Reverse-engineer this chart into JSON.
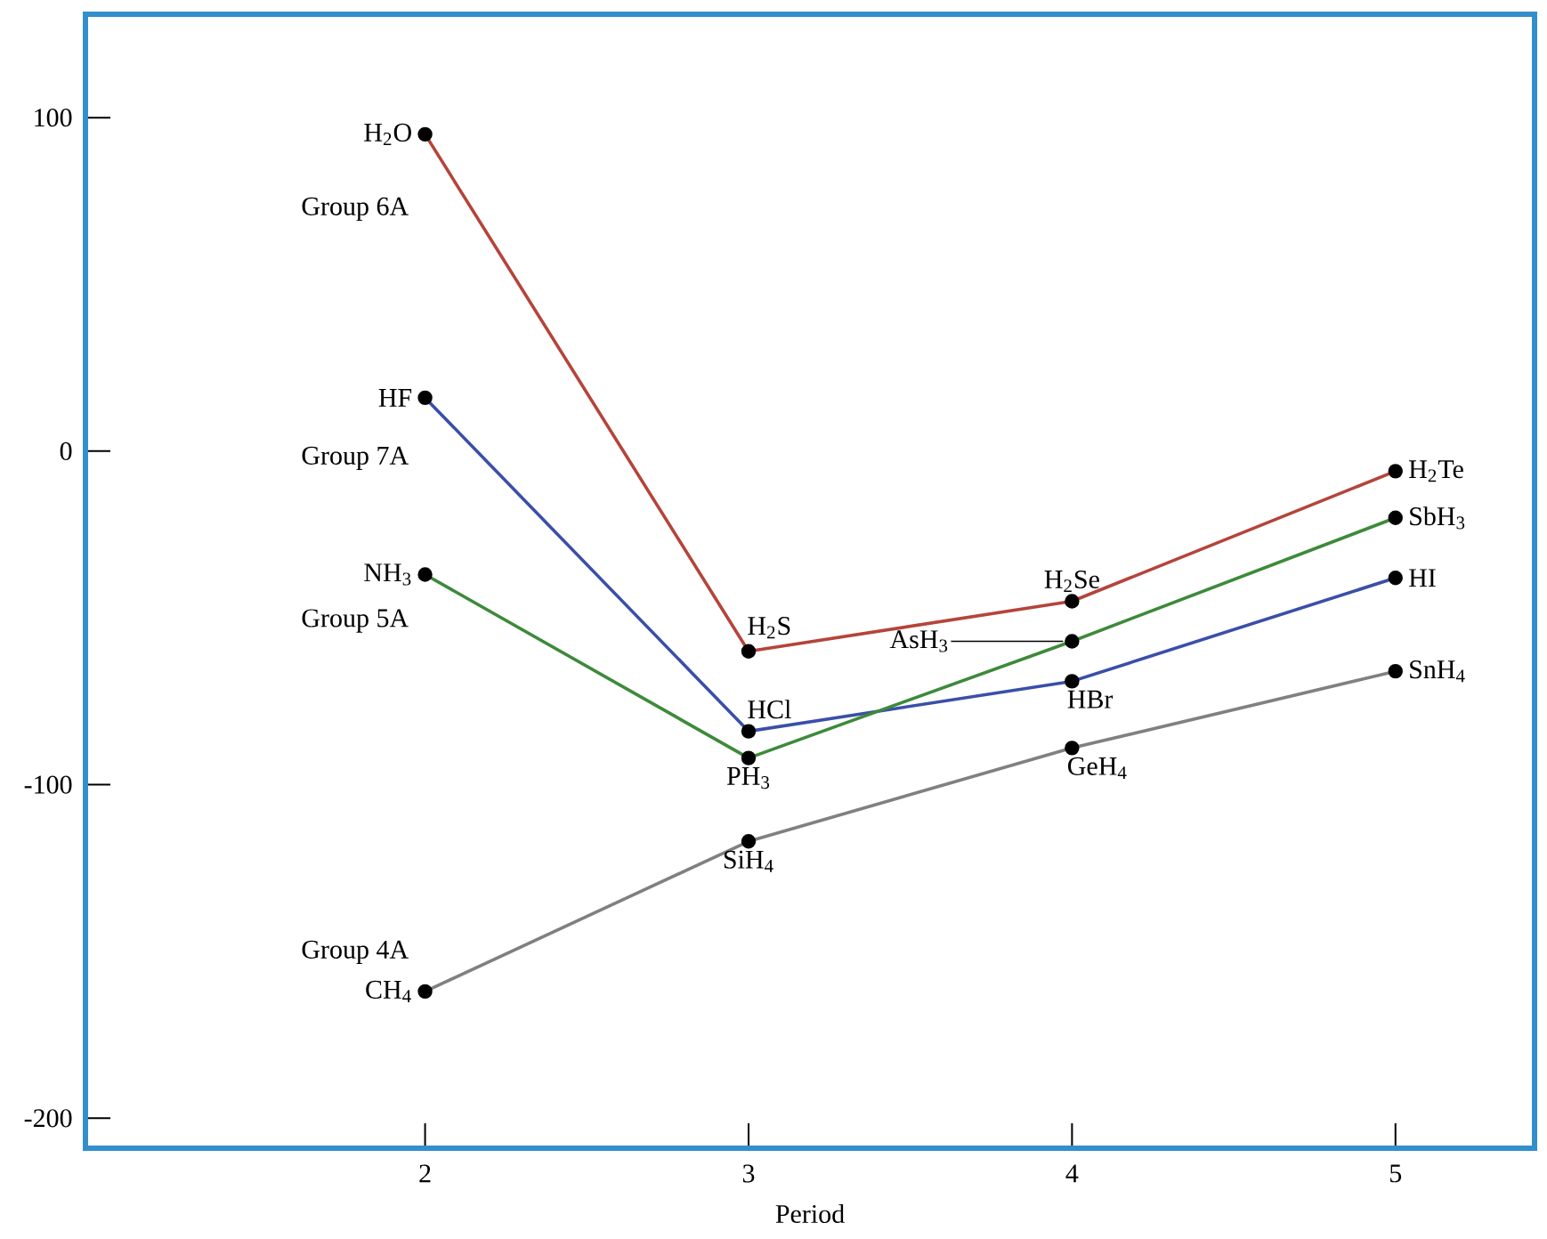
{
  "chart_data": {
    "type": "line",
    "xlabel": "Period",
    "x": [
      2,
      3,
      4,
      5
    ],
    "xlim": [
      0.95,
      5.43
    ],
    "xticks": [
      2,
      3,
      4,
      5
    ],
    "ylim": [
      -209,
      131
    ],
    "yticks": [
      100,
      0,
      -100,
      -200
    ],
    "grid": false,
    "legend": false,
    "marker": "circle",
    "line_style": "solid",
    "series": [
      {
        "name": "Group 6A",
        "color": "#b5443a",
        "values": [
          95,
          -60,
          -45,
          -6
        ]
      },
      {
        "name": "Group 7A",
        "color": "#3a4fa8",
        "values": [
          16,
          -84,
          -69,
          -38
        ]
      },
      {
        "name": "Group 5A",
        "color": "#3d8a3a",
        "values": [
          -37,
          -92,
          -57,
          -20
        ]
      },
      {
        "name": "Group 4A",
        "color": "#808080",
        "values": [
          -162,
          -117,
          -89,
          -66
        ]
      }
    ],
    "annotations": [
      {
        "text": "H$_{2}$O",
        "x": 2,
        "y": 95
      },
      {
        "text": "HF",
        "x": 2,
        "y": 16
      },
      {
        "text": "NH$_{3}$",
        "x": 2,
        "y": -37
      },
      {
        "text": "CH$_{4}$",
        "x": 2,
        "y": -162
      },
      {
        "text": "H$_{2}$S",
        "x": 3,
        "y": -60
      },
      {
        "text": "HCl",
        "x": 3,
        "y": -84
      },
      {
        "text": "PH$_{3}$",
        "x": 3,
        "y": -92
      },
      {
        "text": "SiH$_{4}$",
        "x": 3,
        "y": -117
      },
      {
        "text": "H$_{2}$Se",
        "x": 4,
        "y": -45
      },
      {
        "text": "AsH$_{3}$",
        "x": 4,
        "y": -57
      },
      {
        "text": "HBr",
        "x": 4,
        "y": -69
      },
      {
        "text": "GeH$_{4}$",
        "x": 4,
        "y": -89
      },
      {
        "text": "H$_{2}$Te",
        "x": 5,
        "y": -6
      },
      {
        "text": "SbH$_{3}$",
        "x": 5,
        "y": -20
      },
      {
        "text": "HI",
        "x": 5,
        "y": -38
      },
      {
        "text": "SnH$_{4}$",
        "x": 5,
        "y": -66
      }
    ]
  }
}
